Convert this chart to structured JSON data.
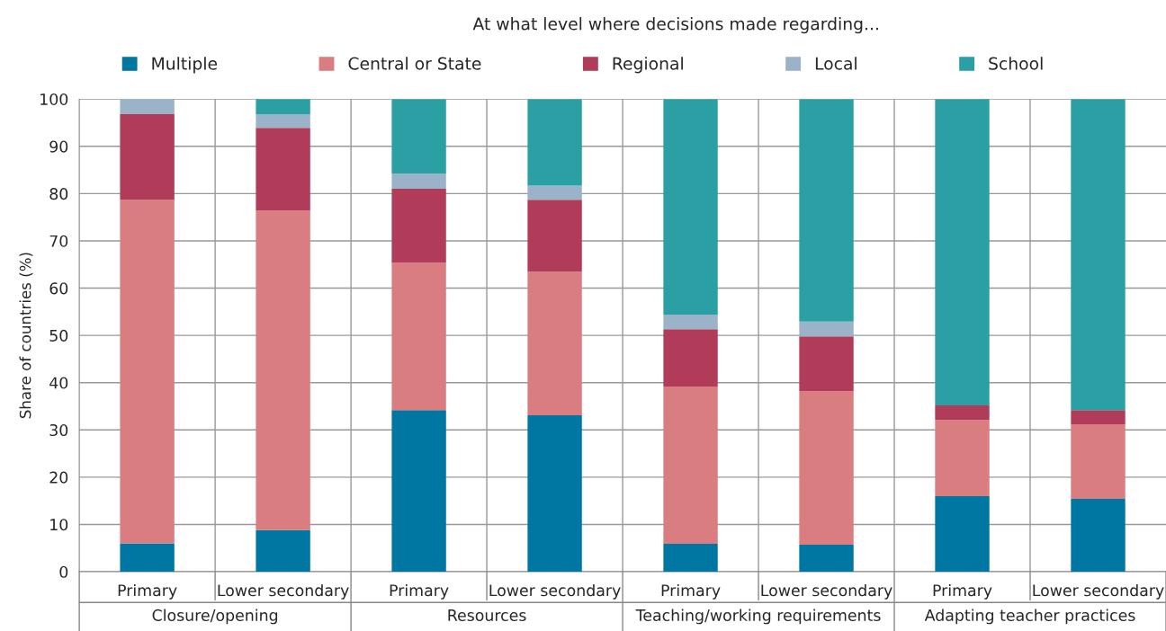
{
  "chart_data": {
    "type": "bar",
    "stacked": true,
    "title": "At what level where decisions made regarding...",
    "ylabel": "Share of countries (%)",
    "categories": [
      "Primary",
      "Lower secondary",
      "Primary",
      "Lower secondary",
      "Primary",
      "Lower secondary",
      "Primary",
      "Lower secondary"
    ],
    "annotations": [
      "Closure/opening",
      "Resources",
      "Teaching/working requirements",
      "Adapting teacher practices"
    ],
    "series": [
      {
        "name": "Multiple",
        "color": "#0077a3",
        "values": [
          6,
          8.8,
          34.2,
          33.1,
          5.9,
          5.7,
          16,
          15.4
        ]
      },
      {
        "name": "Central or State",
        "color": "#d97d80",
        "values": [
          72.7,
          67.6,
          31.2,
          30.4,
          33.3,
          32.5,
          16.1,
          15.8
        ]
      },
      {
        "name": "Regional",
        "color": "#b03c5a",
        "values": [
          18.1,
          17.5,
          15.6,
          15.2,
          12.1,
          11.6,
          3.1,
          3
        ]
      },
      {
        "name": "Local",
        "color": "#9ab3c8",
        "values": [
          3.2,
          2.9,
          3.2,
          3,
          3.1,
          3.1,
          0,
          0
        ]
      },
      {
        "name": "School",
        "color": "#2aa0a5",
        "values": [
          0,
          3.2,
          15.8,
          18.3,
          45.6,
          47.1,
          64.8,
          65.8
        ]
      }
    ],
    "ylim": [
      0,
      100
    ],
    "yticks": [
      0,
      10,
      20,
      30,
      40,
      50,
      60,
      70,
      80,
      90,
      100
    ],
    "grid": true,
    "legend": "top"
  }
}
